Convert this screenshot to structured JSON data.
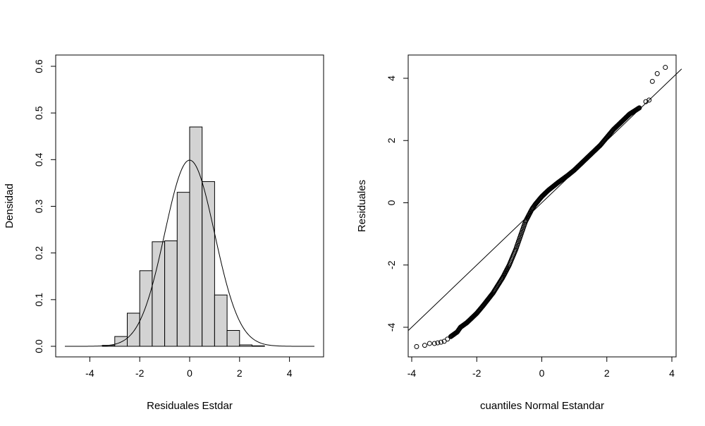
{
  "chart_data": [
    {
      "type": "bar",
      "subtype": "histogram-with-density-curve",
      "title": "",
      "xlabel": "Residuales Estdar",
      "ylabel": "Densidad",
      "xlim": [
        -5,
        5
      ],
      "ylim": [
        0,
        0.6
      ],
      "xticks": [
        -4,
        -2,
        0,
        2,
        4
      ],
      "yticks": [
        0.0,
        0.1,
        0.2,
        0.3,
        0.4,
        0.5,
        0.6
      ],
      "ytick_labels": [
        "0.0",
        "0.1",
        "0.2",
        "0.3",
        "0.4",
        "0.5",
        "0.6"
      ],
      "bin_width": 0.5,
      "bins": [
        {
          "x0": -3.5,
          "x1": -3.0,
          "density": 0.002
        },
        {
          "x0": -3.0,
          "x1": -2.5,
          "density": 0.021
        },
        {
          "x0": -2.5,
          "x1": -2.0,
          "density": 0.071
        },
        {
          "x0": -2.0,
          "x1": -1.5,
          "density": 0.162
        },
        {
          "x0": -1.5,
          "x1": -1.0,
          "density": 0.224
        },
        {
          "x0": -1.0,
          "x1": -0.5,
          "density": 0.226
        },
        {
          "x0": -0.5,
          "x1": 0.0,
          "density": 0.33
        },
        {
          "x0": 0.0,
          "x1": 0.5,
          "density": 0.47
        },
        {
          "x0": 0.5,
          "x1": 1.0,
          "density": 0.353
        },
        {
          "x0": 1.0,
          "x1": 1.5,
          "density": 0.11
        },
        {
          "x0": 1.5,
          "x1": 2.0,
          "density": 0.034
        },
        {
          "x0": 2.0,
          "x1": 2.5,
          "density": 0.003
        },
        {
          "x0": 2.5,
          "x1": 3.0,
          "density": 0.001
        }
      ],
      "curve": {
        "type": "normal-density",
        "mean": 0,
        "sd": 1,
        "x_range": [
          -5,
          5
        ]
      },
      "bar_fill": "#d3d3d3",
      "line_color": "#000000"
    },
    {
      "type": "scatter",
      "subtype": "normal-qq-plot",
      "title": "",
      "xlabel": "cuantiles Normal Estandar",
      "ylabel": "Residuales",
      "xlim": [
        -4,
        4
      ],
      "ylim": [
        -4.6,
        4.4
      ],
      "xticks": [
        -4,
        -2,
        0,
        2,
        4
      ],
      "yticks": [
        -4,
        -2,
        0,
        2,
        4
      ],
      "reference_line": {
        "intercept": 0,
        "slope": 1
      },
      "sample_quantiles_at": [
        [
          -3.85,
          -4.62
        ],
        [
          -3.6,
          -4.58
        ],
        [
          -3.45,
          -4.52
        ],
        [
          -3.3,
          -4.52
        ],
        [
          -3.2,
          -4.5
        ],
        [
          -3.1,
          -4.48
        ],
        [
          -3.0,
          -4.45
        ],
        [
          -2.9,
          -4.38
        ],
        [
          -2.8,
          -4.3
        ],
        [
          -2.6,
          -4.15
        ],
        [
          -2.5,
          -4.0
        ],
        [
          -2.3,
          -3.85
        ],
        [
          -2.0,
          -3.55
        ],
        [
          -1.8,
          -3.3
        ],
        [
          -1.5,
          -2.9
        ],
        [
          -1.2,
          -2.4
        ],
        [
          -1.0,
          -2.0
        ],
        [
          -0.8,
          -1.5
        ],
        [
          -0.7,
          -1.2
        ],
        [
          -0.6,
          -0.9
        ],
        [
          -0.5,
          -0.6
        ],
        [
          -0.4,
          -0.4
        ],
        [
          -0.3,
          -0.2
        ],
        [
          -0.2,
          -0.05
        ],
        [
          0.0,
          0.2
        ],
        [
          0.2,
          0.4
        ],
        [
          0.5,
          0.65
        ],
        [
          0.8,
          0.88
        ],
        [
          1.0,
          1.05
        ],
        [
          1.2,
          1.25
        ],
        [
          1.5,
          1.55
        ],
        [
          1.8,
          1.85
        ],
        [
          2.0,
          2.1
        ],
        [
          2.2,
          2.35
        ],
        [
          2.5,
          2.65
        ],
        [
          2.7,
          2.85
        ],
        [
          2.85,
          2.95
        ],
        [
          3.0,
          3.05
        ],
        [
          3.2,
          3.25
        ],
        [
          3.3,
          3.3
        ],
        [
          3.4,
          3.9
        ],
        [
          3.55,
          4.15
        ],
        [
          3.8,
          4.35
        ]
      ],
      "point_marker": "open-circle"
    }
  ]
}
